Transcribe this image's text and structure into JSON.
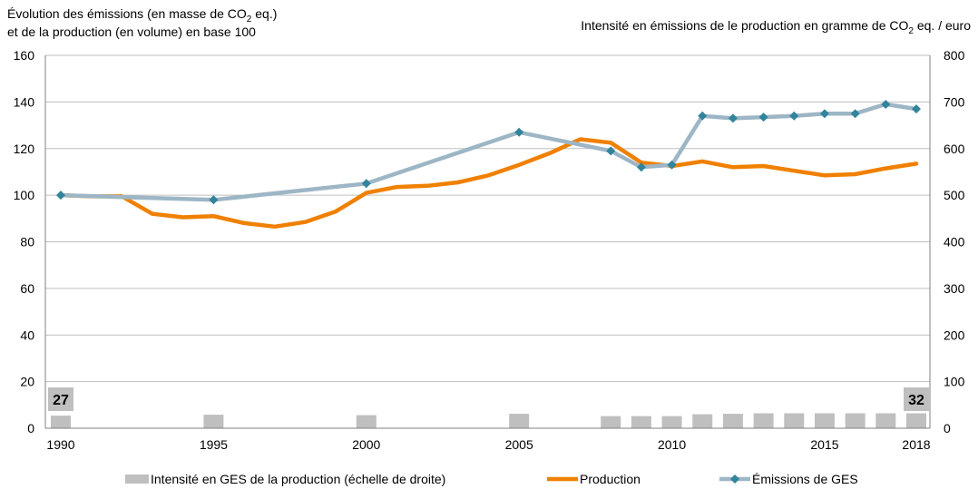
{
  "chart_data": {
    "type": "bar+line",
    "left_title_line1_pre": "Évolution  des émissions (en masse de CO",
    "left_title_line1_sub": "2",
    "left_title_line1_post": " eq.)",
    "left_title_line2": "et de la production  (en volume)  en base 100",
    "right_title_pre": "Intensité  en émissions de le production  en gramme de CO",
    "right_title_sub": "2",
    "right_title_post": " eq.  / euro",
    "x_ticks": [
      "1990",
      "1995",
      "2000",
      "2005",
      "2010",
      "2015",
      "2018"
    ],
    "y_left": {
      "ylim": [
        0,
        160
      ],
      "ticks": [
        "0",
        "20",
        "40",
        "60",
        "80",
        "100",
        "120",
        "140",
        "160"
      ]
    },
    "y_right": {
      "ylim": [
        0,
        800
      ],
      "ticks": [
        "0",
        "100",
        "200",
        "300",
        "400",
        "500",
        "600",
        "700",
        "800"
      ]
    },
    "grid": true,
    "legend_position": "bottom",
    "series": [
      {
        "name": "Intensité en GES de la production (échelle de droite)",
        "kind": "bar",
        "axis": "right",
        "color": "#bfbfbf",
        "x": [
          1990,
          1995,
          2000,
          2005,
          2008,
          2009,
          2010,
          2011,
          2012,
          2013,
          2014,
          2015,
          2016,
          2017,
          2018
        ],
        "values": [
          27,
          29,
          28,
          31,
          26,
          26,
          26,
          30,
          31,
          32,
          32,
          32,
          32,
          32,
          32
        ]
      },
      {
        "name": "Production",
        "kind": "line",
        "axis": "left",
        "color": "#f08000",
        "x": [
          1990,
          1991,
          1992,
          1993,
          1994,
          1995,
          1996,
          1997,
          1998,
          1999,
          2000,
          2001,
          2002,
          2003,
          2004,
          2005,
          2006,
          2007,
          2008,
          2009,
          2010,
          2011,
          2012,
          2013,
          2014,
          2015,
          2016,
          2017,
          2018
        ],
        "values": [
          100,
          99.5,
          99.5,
          92,
          90.5,
          91,
          88,
          86.5,
          88.5,
          93,
          101,
          103.5,
          104,
          105.5,
          108.5,
          113,
          118,
          124,
          122.5,
          114,
          112.5,
          114.5,
          112,
          112.5,
          110.5,
          108.5,
          109,
          111.5,
          113.5
        ]
      },
      {
        "name": "Émissions de GES",
        "kind": "line-markers",
        "axis": "left",
        "color": "#9db6c6",
        "marker_color": "#31849b",
        "x": [
          1990,
          1995,
          2000,
          2005,
          2008,
          2009,
          2010,
          2011,
          2012,
          2013,
          2014,
          2015,
          2016,
          2017,
          2018
        ],
        "values": [
          100,
          98,
          105,
          127,
          119,
          112,
          113,
          134,
          133,
          133.5,
          134,
          135,
          135,
          139,
          137
        ]
      }
    ],
    "annotations": [
      {
        "text": "27",
        "at": 1990
      },
      {
        "text": "32",
        "at": 2018
      }
    ]
  }
}
